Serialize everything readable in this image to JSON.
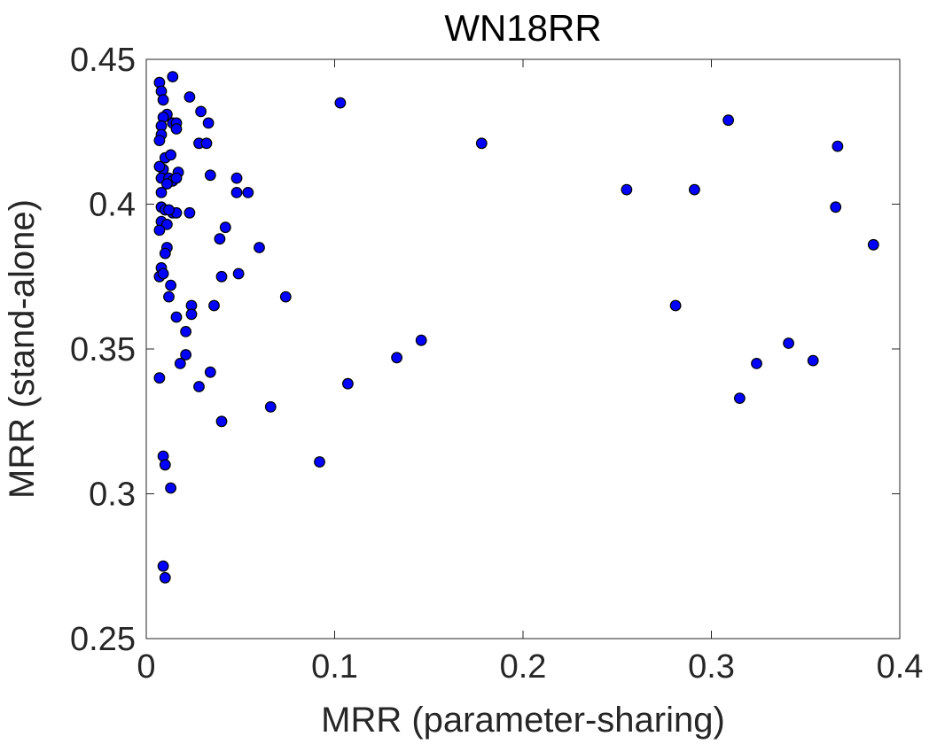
{
  "chart_data": {
    "type": "scatter",
    "title": "WN18RR",
    "xlabel": "MRR (parameter-sharing)",
    "ylabel": "MRR (stand-alone)",
    "xlim": [
      0,
      0.4
    ],
    "ylim": [
      0.25,
      0.45
    ],
    "xticks": [
      0,
      0.1,
      0.2,
      0.3,
      0.4
    ],
    "xtick_labels": [
      "0",
      "0.1",
      "0.2",
      "0.3",
      "0.4"
    ],
    "yticks": [
      0.25,
      0.3,
      0.35,
      0.4,
      0.45
    ],
    "ytick_labels": [
      "0.25",
      "0.3",
      "0.35",
      "0.4",
      "0.45"
    ],
    "grid": false,
    "marker_color": "#0000ff",
    "marker_edge_color": "#000000",
    "series": [
      {
        "points": [
          [
            0.007,
            0.442
          ],
          [
            0.014,
            0.444
          ],
          [
            0.008,
            0.439
          ],
          [
            0.009,
            0.436
          ],
          [
            0.011,
            0.431
          ],
          [
            0.009,
            0.43
          ],
          [
            0.014,
            0.428
          ],
          [
            0.016,
            0.428
          ],
          [
            0.016,
            0.426
          ],
          [
            0.008,
            0.427
          ],
          [
            0.008,
            0.424
          ],
          [
            0.007,
            0.422
          ],
          [
            0.01,
            0.416
          ],
          [
            0.013,
            0.417
          ],
          [
            0.009,
            0.412
          ],
          [
            0.007,
            0.413
          ],
          [
            0.008,
            0.409
          ],
          [
            0.012,
            0.409
          ],
          [
            0.014,
            0.408
          ],
          [
            0.017,
            0.411
          ],
          [
            0.016,
            0.409
          ],
          [
            0.011,
            0.407
          ],
          [
            0.008,
            0.404
          ],
          [
            0.008,
            0.399
          ],
          [
            0.01,
            0.398
          ],
          [
            0.014,
            0.397
          ],
          [
            0.016,
            0.397
          ],
          [
            0.012,
            0.398
          ],
          [
            0.008,
            0.394
          ],
          [
            0.011,
            0.393
          ],
          [
            0.007,
            0.391
          ],
          [
            0.011,
            0.385
          ],
          [
            0.01,
            0.383
          ],
          [
            0.008,
            0.378
          ],
          [
            0.007,
            0.375
          ],
          [
            0.009,
            0.376
          ],
          [
            0.013,
            0.372
          ],
          [
            0.012,
            0.368
          ],
          [
            0.023,
            0.437
          ],
          [
            0.029,
            0.432
          ],
          [
            0.033,
            0.428
          ],
          [
            0.028,
            0.421
          ],
          [
            0.032,
            0.421
          ],
          [
            0.034,
            0.41
          ],
          [
            0.023,
            0.397
          ],
          [
            0.048,
            0.409
          ],
          [
            0.048,
            0.404
          ],
          [
            0.054,
            0.404
          ],
          [
            0.042,
            0.392
          ],
          [
            0.039,
            0.388
          ],
          [
            0.06,
            0.385
          ],
          [
            0.049,
            0.376
          ],
          [
            0.04,
            0.375
          ],
          [
            0.036,
            0.365
          ],
          [
            0.024,
            0.365
          ],
          [
            0.024,
            0.362
          ],
          [
            0.016,
            0.361
          ],
          [
            0.074,
            0.368
          ],
          [
            0.021,
            0.356
          ],
          [
            0.021,
            0.348
          ],
          [
            0.018,
            0.345
          ],
          [
            0.034,
            0.342
          ],
          [
            0.028,
            0.337
          ],
          [
            0.007,
            0.34
          ],
          [
            0.04,
            0.325
          ],
          [
            0.066,
            0.33
          ],
          [
            0.009,
            0.313
          ],
          [
            0.01,
            0.31
          ],
          [
            0.013,
            0.302
          ],
          [
            0.009,
            0.275
          ],
          [
            0.01,
            0.271
          ],
          [
            0.103,
            0.435
          ],
          [
            0.178,
            0.421
          ],
          [
            0.107,
            0.338
          ],
          [
            0.133,
            0.347
          ],
          [
            0.146,
            0.353
          ],
          [
            0.092,
            0.311
          ],
          [
            0.255,
            0.405
          ],
          [
            0.291,
            0.405
          ],
          [
            0.309,
            0.429
          ],
          [
            0.367,
            0.42
          ],
          [
            0.366,
            0.399
          ],
          [
            0.386,
            0.386
          ],
          [
            0.281,
            0.365
          ],
          [
            0.341,
            0.352
          ],
          [
            0.324,
            0.345
          ],
          [
            0.354,
            0.346
          ],
          [
            0.315,
            0.333
          ]
        ]
      }
    ]
  }
}
